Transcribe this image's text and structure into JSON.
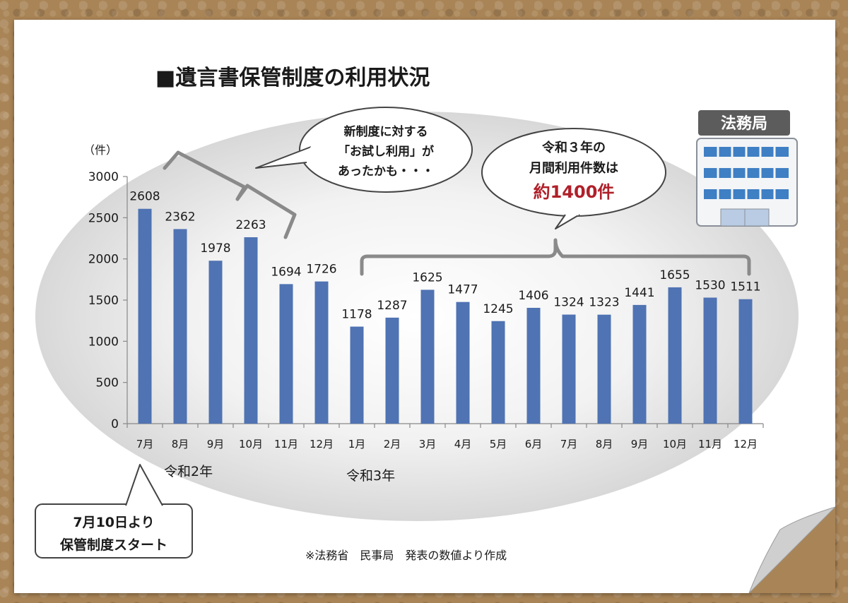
{
  "title": "■遺言書保管制度の利用状況",
  "unit_label": "（件）",
  "callout_trial": [
    "新制度に対する",
    "「お試し利用」が",
    "あったかも・・・"
  ],
  "callout_monthly": [
    "令和３年の",
    "月間利用件数は",
    "約1400件"
  ],
  "callout_start": [
    "7月10日より",
    "保管制度スタート"
  ],
  "source_note": "※法務省　民事局　発表の数値より作成",
  "sign_label": "法務局",
  "year_labels": [
    "令和2年",
    "令和3年"
  ],
  "colors": {
    "bar": "#4f73b3",
    "highlight": "#b0202a"
  },
  "chart_data": {
    "type": "bar",
    "categories": [
      "7月",
      "8月",
      "9月",
      "10月",
      "11月",
      "12月",
      "1月",
      "2月",
      "3月",
      "4月",
      "5月",
      "6月",
      "7月",
      "8月",
      "9月",
      "10月",
      "11月",
      "12月"
    ],
    "values": [
      2608,
      2362,
      1978,
      2263,
      1694,
      1726,
      1178,
      1287,
      1625,
      1477,
      1245,
      1406,
      1324,
      1323,
      1441,
      1655,
      1530,
      1511
    ],
    "ylim": [
      0,
      3000
    ],
    "yticks": [
      0,
      500,
      1000,
      1500,
      2000,
      2500,
      3000
    ],
    "ylabel": "（件）",
    "xlabel": "",
    "grid": false
  }
}
